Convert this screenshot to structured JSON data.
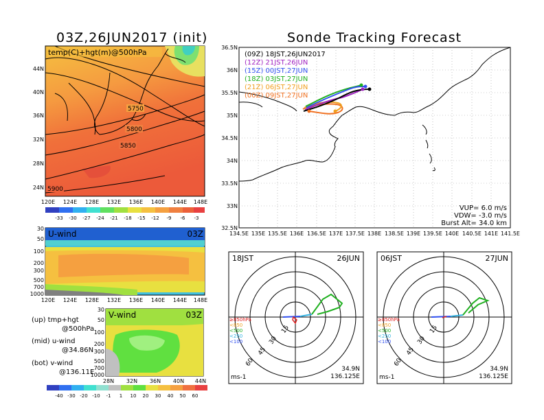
{
  "titles": {
    "left": "03Z,26JUN2017 (init)",
    "right": "Sonde Tracking Forecast"
  },
  "map500": {
    "label": "temp(C)+hgt(m)@500hPa",
    "lat_ticks": [
      "44N",
      "40N",
      "36N",
      "32N",
      "28N",
      "24N"
    ],
    "lon_ticks": [
      "120E",
      "124E",
      "128E",
      "132E",
      "136E",
      "140E",
      "144E",
      "148E"
    ],
    "contour_labels": [
      "5750",
      "5800",
      "5850",
      "5900"
    ],
    "colorbar_ticks": [
      "-33",
      "-30",
      "-27",
      "-24",
      "-21",
      "-18",
      "-15",
      "-12",
      "-9",
      "-6",
      "-3"
    ]
  },
  "uwind": {
    "label": "U-wind",
    "time": "03Z",
    "p_ticks": [
      "30",
      "50",
      "100",
      "200",
      "300",
      "500",
      "700",
      "1000"
    ],
    "lon_ticks": [
      "120E",
      "124E",
      "128E",
      "132E",
      "136E",
      "140E",
      "144E",
      "148E"
    ]
  },
  "vwind": {
    "label": "V-wind",
    "time": "03Z",
    "p_ticks": [
      "30",
      "50",
      "100",
      "200",
      "300",
      "500",
      "700",
      "1000"
    ],
    "lat_ticks": [
      "28N",
      "32N",
      "36N",
      "40N",
      "44N"
    ],
    "colorbar_ticks": [
      "-40",
      "-30",
      "-20",
      "-10",
      "-1",
      "1",
      "10",
      "20",
      "30",
      "40",
      "50",
      "60"
    ]
  },
  "legend_text": {
    "up1": "(up)  tmp+hgt",
    "up2": "@500hPa",
    "mid1": "(mid)  u-wind",
    "mid2": "@34.86N",
    "bot1": "(bot)  v-wind",
    "bot2": "@136.11E"
  },
  "tracking": {
    "lon_ticks": [
      "134.5E",
      "135E",
      "135.5E",
      "136E",
      "136.5E",
      "137E",
      "137.5E",
      "138E",
      "138.5E",
      "139E",
      "139.5E",
      "140E",
      "140.5E",
      "141E",
      "141.5E"
    ],
    "lat_ticks": [
      "36.5N",
      "36N",
      "35.5N",
      "35N",
      "34.5N",
      "34N",
      "33.5N",
      "33N",
      "32.5N"
    ],
    "legend": [
      {
        "text": "(09Z)  18JST,26JUN2017",
        "color": "#000000"
      },
      {
        "text": "(12Z)  21JST,26JUN",
        "color": "#a020c0"
      },
      {
        "text": "(15Z)  00JST,27JUN",
        "color": "#3050f0"
      },
      {
        "text": "(18Z)  03JST,27JUN",
        "color": "#20b020"
      },
      {
        "text": "(21Z)  06JST,27JUN",
        "color": "#f0a020"
      },
      {
        "text": "(00Z)  09JST,27JUN",
        "color": "#f07020"
      }
    ],
    "params": {
      "vup": "VUP=  6.0  m/s",
      "vdw": "VDW= -3.0  m/s",
      "burst": "Burst Alt=  34.0  km"
    }
  },
  "hodo1": {
    "time": "18JST",
    "date": "26JUN",
    "lat": "34.9N",
    "lon": "136.125E",
    "unit": "ms-1",
    "rings": [
      "15",
      "30",
      "45",
      "60"
    ]
  },
  "hodo2": {
    "time": "06JST",
    "date": "27JUN",
    "lat": "34.9N",
    "lon": "136.125E",
    "unit": "ms-1",
    "rings": [
      "15",
      "30",
      "45",
      "60"
    ]
  },
  "hodo_legend": [
    {
      "text": "≥850hPa",
      "color": "#e02020"
    },
    {
      "text": "<850",
      "color": "#f0a020"
    },
    {
      "text": "<500",
      "color": "#20b020"
    },
    {
      "text": "<250",
      "color": "#30b0e0"
    },
    {
      "text": "<100",
      "color": "#3050f0"
    }
  ],
  "colors": {
    "warm": "#f07a3c",
    "mid": "#f5b04a",
    "yellow": "#e8e85a",
    "green": "#66e04a",
    "cyan": "#50e0d0",
    "blue": "#3070f0",
    "purple": "#9040e0"
  }
}
